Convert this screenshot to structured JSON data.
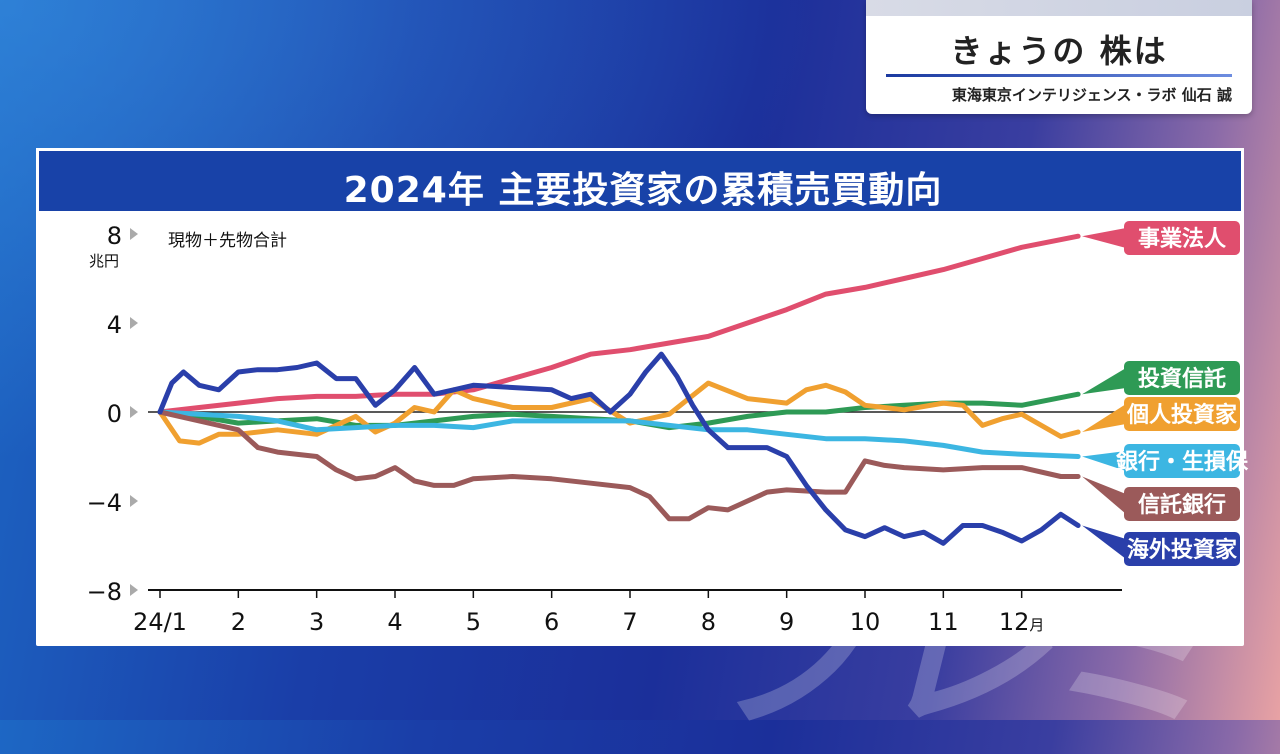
{
  "program": {
    "title": "きょうの 株は",
    "byline": "東海東京インテリジェンス・ラボ 仙石 誠"
  },
  "watermark_text": "プレミ",
  "chart_data": {
    "type": "line",
    "title": "2024年 主要投資家の累積売買動向",
    "subtitle": "現物＋先物合計",
    "ylabel": "兆円",
    "ylim": [
      -8,
      8
    ],
    "yticks": [
      8,
      4,
      0,
      -4,
      -8
    ],
    "ytick_labels": [
      "8",
      "4",
      "0",
      "−4",
      "−8"
    ],
    "xlim": [
      1,
      13.0
    ],
    "xticks": [
      1,
      2,
      3,
      4,
      5,
      6,
      7,
      8,
      9,
      10,
      11,
      12
    ],
    "xtick_labels": [
      "24/1",
      "2",
      "3",
      "4",
      "5",
      "6",
      "7",
      "8",
      "9",
      "10",
      "11",
      "12月"
    ],
    "grid": false,
    "legend": "right, labels at line ends",
    "series": [
      {
        "name": "事業法人",
        "color": "#e04e6e",
        "x": [
          1.0,
          1.5,
          2.0,
          2.5,
          3.0,
          3.5,
          4.0,
          4.5,
          5.0,
          5.5,
          6.0,
          6.5,
          7.0,
          7.5,
          8.0,
          8.5,
          9.0,
          9.5,
          10.0,
          10.5,
          11.0,
          11.5,
          12.0,
          12.72
        ],
        "y": [
          0,
          0.2,
          0.4,
          0.6,
          0.7,
          0.7,
          0.8,
          0.8,
          1.0,
          1.5,
          2.0,
          2.6,
          2.8,
          3.1,
          3.4,
          4.0,
          4.6,
          5.3,
          5.6,
          6.0,
          6.4,
          6.9,
          7.4,
          7.9
        ]
      },
      {
        "name": "投資信託",
        "color": "#2e9a55",
        "x": [
          1.0,
          1.5,
          2.0,
          2.5,
          3.0,
          3.5,
          4.0,
          4.5,
          5.0,
          5.5,
          6.0,
          6.5,
          7.0,
          7.5,
          8.0,
          8.5,
          9.0,
          9.5,
          10.0,
          10.5,
          11.0,
          11.5,
          12.0,
          12.72
        ],
        "y": [
          0,
          -0.2,
          -0.5,
          -0.4,
          -0.3,
          -0.6,
          -0.6,
          -0.4,
          -0.2,
          -0.1,
          -0.2,
          -0.3,
          -0.4,
          -0.7,
          -0.5,
          -0.2,
          0,
          0,
          0.2,
          0.3,
          0.4,
          0.4,
          0.3,
          0.8
        ]
      },
      {
        "name": "個人投資家",
        "color": "#f0a030",
        "x": [
          1.0,
          1.25,
          1.5,
          1.75,
          2.0,
          2.5,
          3.0,
          3.5,
          3.75,
          4.0,
          4.25,
          4.5,
          4.75,
          5.0,
          5.5,
          6.0,
          6.5,
          7.0,
          7.5,
          8.0,
          8.5,
          9.0,
          9.25,
          9.5,
          9.75,
          10.0,
          10.5,
          11.0,
          11.25,
          11.5,
          11.75,
          12.0,
          12.5,
          12.72
        ],
        "y": [
          0,
          -1.3,
          -1.4,
          -1.0,
          -1.0,
          -0.8,
          -1.0,
          -0.2,
          -0.9,
          -0.5,
          0.2,
          0,
          1.0,
          0.6,
          0.2,
          0.2,
          0.6,
          -0.5,
          -0.1,
          1.3,
          0.6,
          0.4,
          1.0,
          1.2,
          0.9,
          0.3,
          0.1,
          0.4,
          0.3,
          -0.6,
          -0.3,
          -0.1,
          -1.1,
          -0.9
        ]
      },
      {
        "name": "銀行・生損保",
        "color": "#3cb6e2",
        "x": [
          1.0,
          1.5,
          2.0,
          2.5,
          3.0,
          3.5,
          4.0,
          4.5,
          5.0,
          5.5,
          6.0,
          6.5,
          7.0,
          7.5,
          8.0,
          8.5,
          9.0,
          9.5,
          10.0,
          10.5,
          11.0,
          11.5,
          12.0,
          12.72
        ],
        "y": [
          0,
          -0.1,
          -0.2,
          -0.4,
          -0.8,
          -0.7,
          -0.6,
          -0.6,
          -0.7,
          -0.4,
          -0.4,
          -0.4,
          -0.4,
          -0.6,
          -0.8,
          -0.8,
          -1.0,
          -1.2,
          -1.2,
          -1.3,
          -1.5,
          -1.8,
          -1.9,
          -2.0
        ]
      },
      {
        "name": "信託銀行",
        "color": "#9b5a5a",
        "x": [
          1.0,
          1.5,
          2.0,
          2.25,
          2.5,
          3.0,
          3.25,
          3.5,
          3.75,
          4.0,
          4.25,
          4.5,
          4.75,
          5.0,
          5.5,
          6.0,
          6.5,
          7.0,
          7.25,
          7.5,
          7.75,
          8.0,
          8.25,
          8.5,
          8.75,
          9.0,
          9.5,
          9.75,
          10.0,
          10.25,
          10.5,
          11.0,
          11.5,
          12.0,
          12.5,
          12.72
        ],
        "y": [
          0,
          -0.4,
          -0.8,
          -1.6,
          -1.8,
          -2.0,
          -2.6,
          -3.0,
          -2.9,
          -2.5,
          -3.1,
          -3.3,
          -3.3,
          -3.0,
          -2.9,
          -3.0,
          -3.2,
          -3.4,
          -3.8,
          -4.8,
          -4.8,
          -4.3,
          -4.4,
          -4.0,
          -3.6,
          -3.5,
          -3.6,
          -3.6,
          -2.2,
          -2.4,
          -2.5,
          -2.6,
          -2.5,
          -2.5,
          -2.9,
          -2.9
        ]
      },
      {
        "name": "海外投資家",
        "color": "#2a3faa",
        "x": [
          1.0,
          1.15,
          1.3,
          1.5,
          1.75,
          2.0,
          2.25,
          2.5,
          2.75,
          3.0,
          3.25,
          3.5,
          3.75,
          4.0,
          4.25,
          4.5,
          4.75,
          5.0,
          5.5,
          6.0,
          6.25,
          6.5,
          6.75,
          7.0,
          7.2,
          7.4,
          7.6,
          7.8,
          8.0,
          8.25,
          8.5,
          8.75,
          9.0,
          9.25,
          9.5,
          9.75,
          10.0,
          10.25,
          10.5,
          10.75,
          11.0,
          11.25,
          11.5,
          11.75,
          12.0,
          12.25,
          12.5,
          12.72
        ],
        "y": [
          0,
          1.3,
          1.8,
          1.2,
          1.0,
          1.8,
          1.9,
          1.9,
          2.0,
          2.2,
          1.5,
          1.5,
          0.3,
          1.0,
          2.0,
          0.8,
          1.0,
          1.2,
          1.1,
          1.0,
          0.6,
          0.8,
          0,
          0.8,
          1.8,
          2.6,
          1.6,
          0.3,
          -0.8,
          -1.6,
          -1.6,
          -1.6,
          -2.0,
          -3.3,
          -4.4,
          -5.3,
          -5.6,
          -5.2,
          -5.6,
          -5.4,
          -5.9,
          -5.1,
          -5.1,
          -5.4,
          -5.8,
          -5.3,
          -4.6,
          -5.1
        ]
      }
    ]
  }
}
